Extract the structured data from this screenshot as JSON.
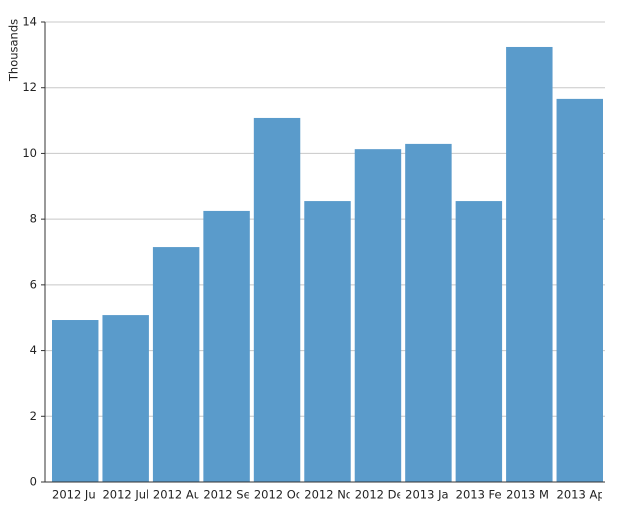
{
  "chart_data": {
    "type": "bar",
    "y_label": "Thousands",
    "categories": [
      "2012 Ju",
      "2012 Jul",
      "2012 Au",
      "2012 Se",
      "2012 Oc",
      "2012 No",
      "2012 De",
      "2013 Ja",
      "2013 Fe",
      "2013 M",
      "2013 Ap"
    ],
    "values": [
      4.93,
      5.08,
      7.15,
      8.25,
      11.08,
      8.55,
      10.13,
      10.29,
      8.55,
      13.24,
      11.66
    ],
    "color": "#5a9bcb",
    "ylim": [
      0,
      14
    ],
    "yticks": [
      0,
      2,
      4,
      6,
      8,
      10,
      12,
      14
    ],
    "grid": true
  }
}
